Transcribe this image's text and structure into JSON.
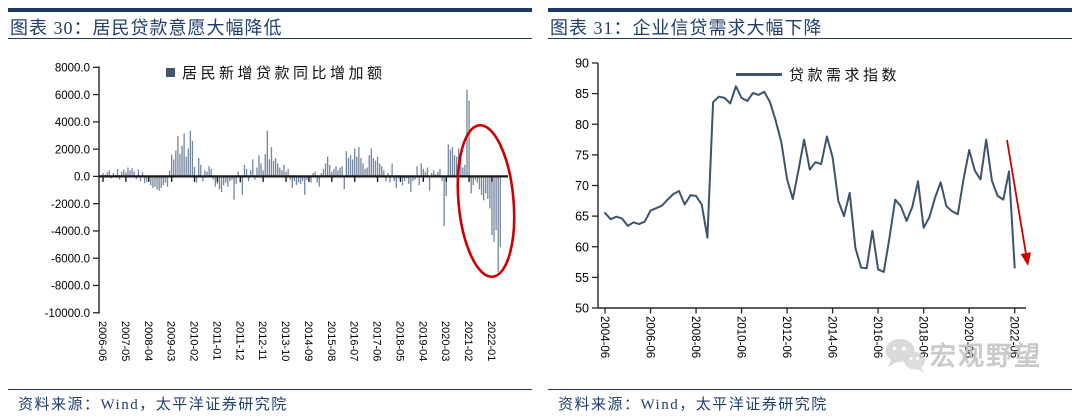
{
  "colors": {
    "accent_navy": "#1F3864",
    "bar_fill": "#74859E",
    "legend_square": "#44546A",
    "line_color": "#3E536E",
    "annotation_red": "#CC0000",
    "watermark_gray": "#c6c6c6"
  },
  "panels": [
    {
      "title": "图表 30：居民贷款意愿大幅降低",
      "source": "资料来源：Wind，太平洋证券研究院"
    },
    {
      "title": "图表 31：企业信贷需求大幅下降",
      "source": "资料来源：Wind，太平洋证券研究院",
      "watermark": "宏观野望"
    }
  ],
  "chart_data": [
    {
      "type": "bar",
      "title": "图表 30：居民贷款意愿大幅降低",
      "legend": "居民新增贷款同比增加额",
      "legend_position": "top",
      "ylim": [
        -10000,
        8000
      ],
      "ytick_step": 2000,
      "ytick_labels": [
        "8000.0",
        "6000.0",
        "4000.0",
        "2000.0",
        "0.0",
        "-2000.0",
        "-4000.0",
        "-6000.0",
        "-8000.0",
        "-10000.0"
      ],
      "x_start": "2006-06",
      "x_freq": "monthly",
      "x_tick_interval_months": 11,
      "x_tick_labels": [
        "2006-06",
        "2007-05",
        "2008-04",
        "2009-03",
        "2010-02",
        "2011-01",
        "2011-12",
        "2012-11",
        "2013-10",
        "2014-09",
        "2015-08",
        "2016-07",
        "2017-06",
        "2018-05",
        "2019-04",
        "2020-03",
        "2021-02",
        "2022-01"
      ],
      "values": [
        250,
        100,
        300,
        450,
        -150,
        250,
        100,
        550,
        -250,
        350,
        500,
        300,
        650,
        450,
        600,
        350,
        -200,
        500,
        -350,
        300,
        -500,
        -400,
        -200,
        -650,
        -850,
        -750,
        -950,
        -1050,
        -850,
        -650,
        -450,
        -750,
        450,
        1600,
        1250,
        1900,
        2950,
        1650,
        2250,
        3150,
        1450,
        2050,
        3350,
        2600,
        700,
        -450,
        1350,
        850,
        -350,
        450,
        350,
        750,
        550,
        -250,
        -750,
        -550,
        -950,
        -1150,
        -650,
        -450,
        -750,
        -350,
        -250,
        -1700,
        -550,
        350,
        -450,
        -1350,
        850,
        550,
        -350,
        450,
        1250,
        -250,
        650,
        1550,
        950,
        450,
        1650,
        3350,
        1250,
        2150,
        1150,
        1350,
        950,
        650,
        450,
        850,
        350,
        550,
        -250,
        -850,
        -350,
        -650,
        -450,
        -550,
        -350,
        -1350,
        -250,
        -150,
        -450,
        250,
        350,
        -450,
        -750,
        250,
        550,
        950,
        1450,
        850,
        350,
        550,
        750,
        450,
        650,
        750,
        -950,
        1850,
        1350,
        1550,
        1250,
        2050,
        1450,
        2150,
        1350,
        950,
        550,
        650,
        1550,
        2050,
        1350,
        1150,
        1450,
        950,
        750,
        450,
        -350,
        250,
        -450,
        950,
        -350,
        -850,
        -150,
        -250,
        -650,
        -350,
        -150,
        -550,
        -1150,
        -350,
        -250,
        750,
        -650,
        950,
        550,
        350,
        650,
        -1050,
        250,
        450,
        150,
        350,
        550,
        -350,
        -3650,
        -1450,
        2350,
        1950,
        2150,
        1550,
        1450,
        2050,
        1250,
        650,
        850,
        6360,
        5550,
        -1250,
        -650,
        -250,
        -450,
        -950,
        -1350,
        -1750,
        -1250,
        -1650,
        -2350,
        -4300,
        -4800,
        -3950,
        -7000,
        -5200
      ],
      "annotation": {
        "shape": "ellipse",
        "color": "#CC0000",
        "covers": "2020-12 to 2022-05"
      }
    },
    {
      "type": "line",
      "title": "图表 31：企业信贷需求大幅下降",
      "legend": "贷款需求指数",
      "legend_position": "top",
      "ylim": [
        50,
        90
      ],
      "ytick_step": 5,
      "ytick_labels": [
        "90",
        "85",
        "80",
        "75",
        "70",
        "65",
        "60",
        "55",
        "50"
      ],
      "x_start": "2004-06",
      "x_freq": "quarterly",
      "x_tick_interval_quarters": 8,
      "x_tick_labels": [
        "2004-06",
        "2006-06",
        "2008-06",
        "2010-06",
        "2012-06",
        "2014-06",
        "2016-06",
        "2018-06",
        "2020-06",
        "2022-06"
      ],
      "values": [
        65.5,
        64.5,
        64.9,
        64.6,
        63.4,
        64.0,
        63.7,
        64.1,
        65.9,
        66.3,
        66.7,
        67.7,
        68.6,
        69.1,
        66.9,
        68.4,
        68.3,
        66.9,
        61.5,
        83.6,
        84.5,
        84.3,
        83.4,
        86.2,
        84.3,
        83.8,
        85.1,
        84.8,
        85.3,
        83.6,
        80.6,
        77.0,
        71.0,
        67.8,
        72.5,
        77.5,
        72.6,
        73.8,
        73.5,
        78.0,
        74.6,
        67.5,
        65.0,
        68.8,
        59.8,
        56.6,
        56.5,
        62.6,
        56.3,
        55.9,
        61.5,
        67.7,
        66.6,
        64.2,
        66.5,
        70.7,
        63.1,
        64.8,
        68.0,
        70.5,
        66.6,
        65.8,
        65.3,
        71.0,
        75.8,
        72.4,
        71.0,
        77.5,
        70.8,
        68.3,
        67.7,
        72.3,
        56.6
      ],
      "annotation": {
        "shape": "down-arrow",
        "color": "#CC0000",
        "covers": "2022-03 to 2022-06"
      }
    }
  ]
}
